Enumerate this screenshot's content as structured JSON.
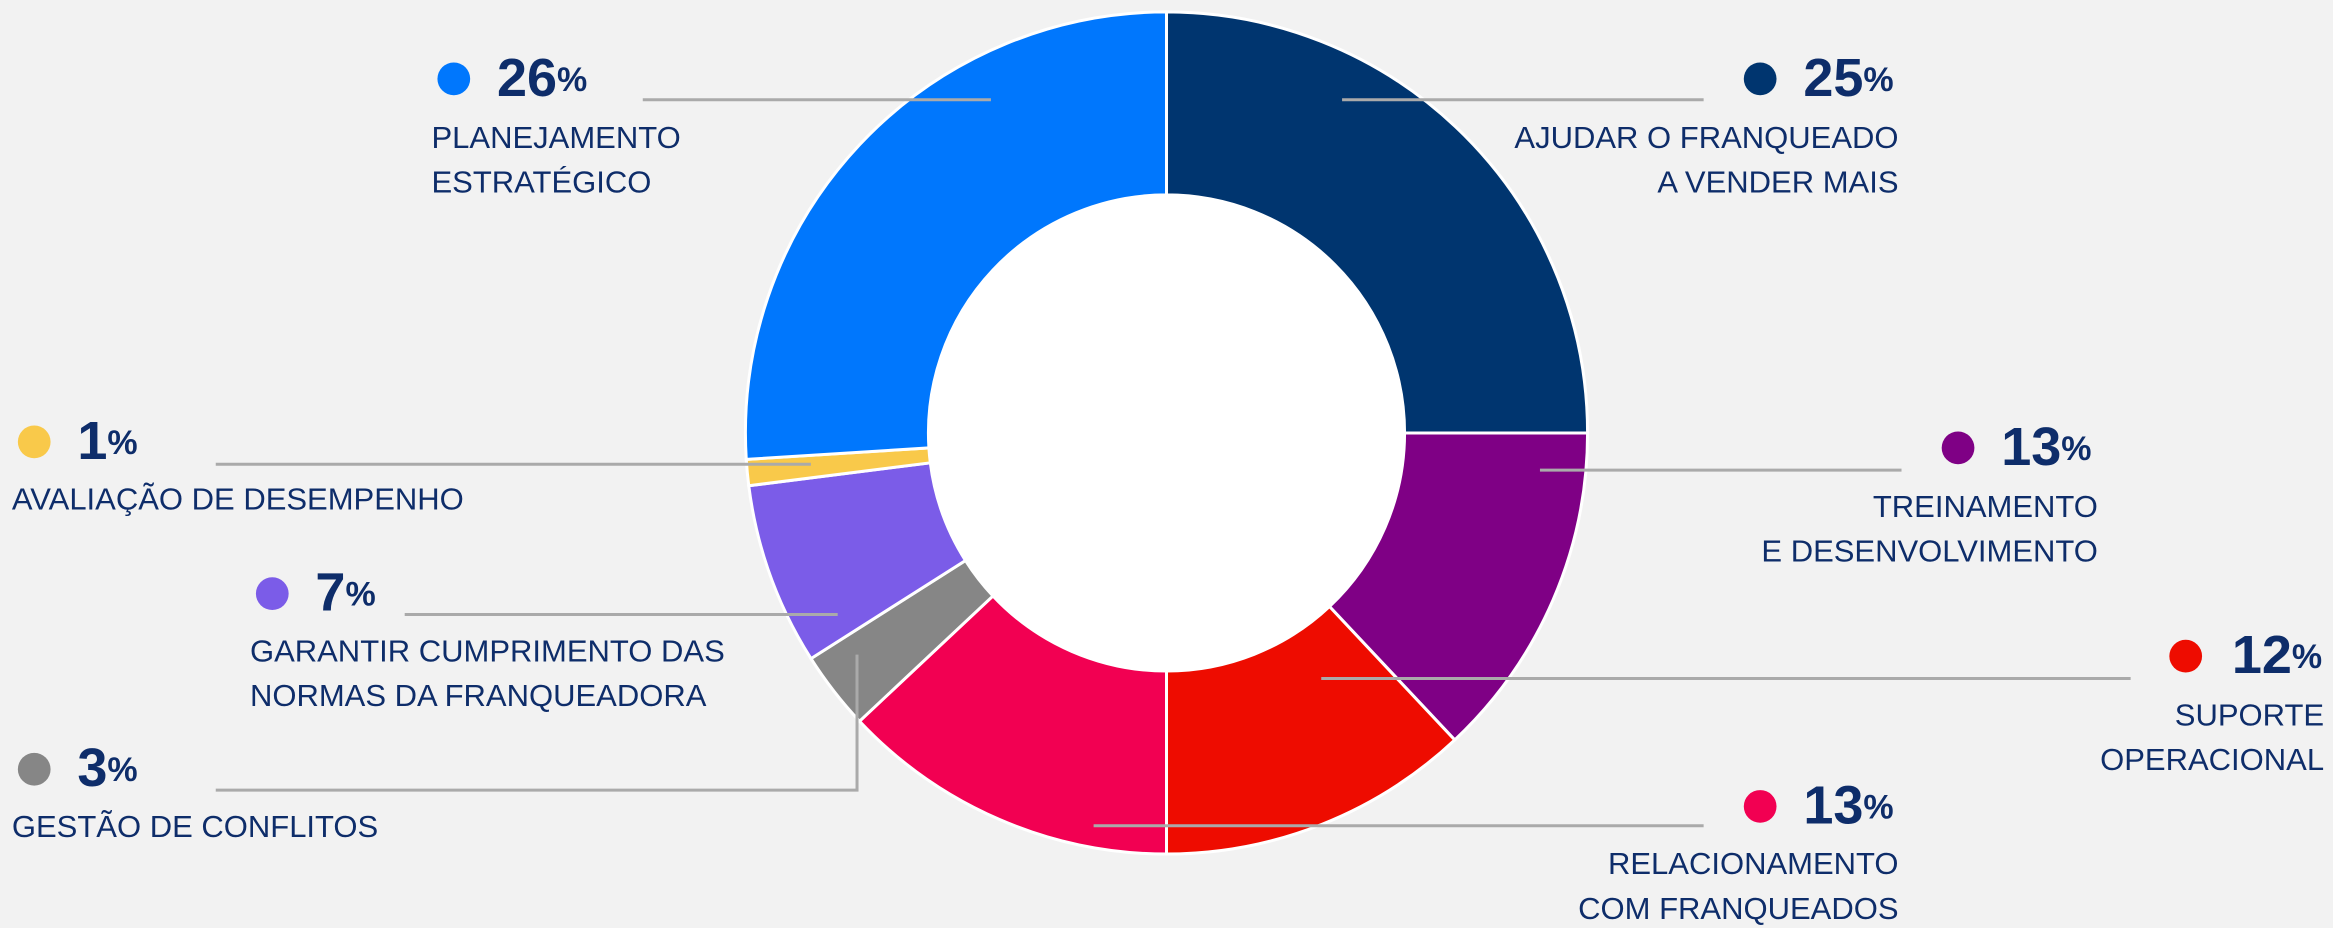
{
  "chart_data": {
    "type": "donut",
    "categories": [
      [
        "AJUDAR O FRANQUEADO",
        "A VENDER MAIS"
      ],
      [
        "TREINAMENTO",
        "E DESENVOLVIMENTO"
      ],
      [
        "SUPORTE",
        "OPERACIONAL"
      ],
      [
        "RELACIONAMENTO",
        "COM FRANQUEADOS"
      ],
      [
        "GESTÃO DE CONFLITOS"
      ],
      [
        "GARANTIR CUMPRIMENTO DAS",
        "NORMAS DA FRANQUEADORA"
      ],
      [
        "AVALIAÇÃO DE DESEMPENHO"
      ],
      [
        "PLANEJAMENTO",
        "ESTRATÉGICO"
      ]
    ],
    "values": [
      25,
      13,
      12,
      13,
      3,
      7,
      1,
      26
    ],
    "value_labels": [
      "25%",
      "13%",
      "12%",
      "13%",
      "3%",
      "7%",
      "1%",
      "26%"
    ],
    "colors": [
      "#00356f",
      "#7f0085",
      "#ee0c00",
      "#f20052",
      "#868686",
      "#7b5ce8",
      "#f9c94a",
      "#0077fd"
    ]
  }
}
